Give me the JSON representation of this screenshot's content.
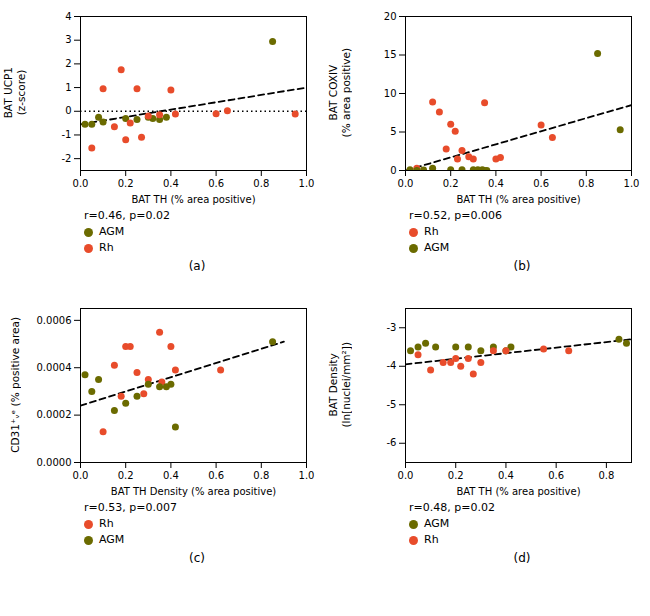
{
  "chart_data": [
    {
      "type": "scatter",
      "caption": "(a)",
      "annotations": [
        "r=0.46, p=0.02"
      ],
      "xlabel": "BAT TH (% area positive)",
      "ylabel": "BAT UCP1\n(z-score)",
      "xlim": [
        0,
        1.0
      ],
      "ylim": [
        -2.5,
        4.0
      ],
      "xticks": [
        {
          "value": 0,
          "label": "0.0"
        },
        0.2,
        0.4,
        0.6,
        0.8,
        {
          "value": 1,
          "label": "1.0"
        }
      ],
      "yticks": [
        -2,
        -1,
        0,
        1,
        2,
        3,
        4
      ],
      "grid": false,
      "legend": "bottom",
      "hlines": [
        {
          "value": 0,
          "color": "#000000",
          "line_style": "dotted"
        }
      ],
      "series": [
        {
          "name": "AGM",
          "color": "#6b6b00",
          "marker": "circle",
          "x": [
            0.02,
            0.05,
            0.08,
            0.1,
            0.2,
            0.25,
            0.3,
            0.32,
            0.35,
            0.38,
            0.85
          ],
          "values": [
            -0.55,
            -0.55,
            -0.25,
            -0.45,
            -0.3,
            -0.35,
            -0.25,
            -0.3,
            -0.35,
            -0.25,
            2.95
          ]
        },
        {
          "name": "Rh",
          "color": "#e84c2b",
          "marker": "circle",
          "x": [
            0.05,
            0.1,
            0.15,
            0.18,
            0.2,
            0.22,
            0.25,
            0.27,
            0.3,
            0.35,
            0.4,
            0.42,
            0.6,
            0.65,
            0.95
          ],
          "values": [
            -1.55,
            0.95,
            -0.65,
            1.75,
            -1.2,
            -0.5,
            0.95,
            -1.1,
            -0.2,
            -0.15,
            0.9,
            -0.12,
            -0.1,
            0.02,
            -0.12
          ]
        },
        {
          "type": "line",
          "line_style": "dashed",
          "color": "#000000",
          "x": [
            0.0,
            1.0
          ],
          "values": [
            -0.55,
            1.0
          ]
        }
      ]
    },
    {
      "type": "scatter",
      "caption": "(b)",
      "annotations": [
        "r=0.52, p=0.006"
      ],
      "xlabel": "BAT TH (% area positive)",
      "ylabel": "BAT COXIV\n(% area positive)",
      "xlim": [
        0,
        1.0
      ],
      "ylim": [
        0,
        20
      ],
      "xticks": [
        {
          "value": 0,
          "label": "0.0"
        },
        0.2,
        0.4,
        0.6,
        0.8,
        {
          "value": 1,
          "label": "1.0"
        }
      ],
      "yticks": [
        0,
        5,
        10,
        15,
        20
      ],
      "grid": false,
      "legend": "bottom",
      "series": [
        {
          "name": "Rh",
          "color": "#e84c2b",
          "marker": "circle",
          "x": [
            0.05,
            0.12,
            0.15,
            0.18,
            0.2,
            0.22,
            0.23,
            0.25,
            0.28,
            0.3,
            0.35,
            0.4,
            0.42,
            0.6,
            0.65
          ],
          "values": [
            0.3,
            8.9,
            7.6,
            2.8,
            6.0,
            5.1,
            1.5,
            2.6,
            1.8,
            1.5,
            8.8,
            1.5,
            1.7,
            5.9,
            4.3
          ]
        },
        {
          "name": "AGM",
          "color": "#6b6b00",
          "marker": "circle",
          "x": [
            0.02,
            0.05,
            0.08,
            0.12,
            0.2,
            0.25,
            0.3,
            0.32,
            0.34,
            0.35,
            0.36,
            0.85,
            0.95
          ],
          "values": [
            0.1,
            0.0,
            0.05,
            0.3,
            0.1,
            0.1,
            0.1,
            0.1,
            0.1,
            0.0,
            0.0,
            15.2,
            5.3
          ]
        },
        {
          "type": "line",
          "line_style": "dashed",
          "color": "#000000",
          "x": [
            0.0,
            1.0
          ],
          "values": [
            0.0,
            8.5
          ]
        }
      ]
    },
    {
      "type": "scatter",
      "caption": "(c)",
      "annotations": [
        "r=0.53, p=0.007"
      ],
      "xlabel": "BAT TH Density (% area positive)",
      "ylabel": "CD31⁺ᵥᵉ (% positive area)",
      "xlim": [
        0,
        1.0
      ],
      "ylim": [
        0,
        0.00065
      ],
      "xticks": [
        {
          "value": 0,
          "label": "0.0"
        },
        0.2,
        0.4,
        0.6,
        0.8,
        {
          "value": 1,
          "label": "1.0"
        }
      ],
      "yticks": [
        {
          "value": 0,
          "label": "0.0000"
        },
        {
          "value": 0.0002,
          "label": "0.0002"
        },
        {
          "value": 0.0004,
          "label": "0.0004"
        },
        {
          "value": 0.0006,
          "label": "0.0006"
        }
      ],
      "grid": false,
      "legend": "bottom",
      "series": [
        {
          "name": "Rh",
          "color": "#e84c2b",
          "marker": "circle",
          "x": [
            0.1,
            0.15,
            0.18,
            0.2,
            0.22,
            0.25,
            0.28,
            0.3,
            0.35,
            0.36,
            0.4,
            0.42,
            0.62
          ],
          "values": [
            0.00013,
            0.00041,
            0.00028,
            0.00049,
            0.00049,
            0.00038,
            0.00029,
            0.00035,
            0.00055,
            0.00034,
            0.00049,
            0.00039,
            0.00039
          ]
        },
        {
          "name": "AGM",
          "color": "#6b6b00",
          "marker": "circle",
          "x": [
            0.02,
            0.05,
            0.08,
            0.15,
            0.2,
            0.25,
            0.3,
            0.35,
            0.38,
            0.4,
            0.42,
            0.85
          ],
          "values": [
            0.00037,
            0.0003,
            0.00035,
            0.00022,
            0.00025,
            0.00028,
            0.00033,
            0.00032,
            0.00032,
            0.00033,
            0.00015,
            0.00051
          ]
        },
        {
          "type": "line",
          "line_style": "dashed",
          "color": "#000000",
          "x": [
            0.0,
            0.9
          ],
          "values": [
            0.00024,
            0.00051
          ]
        }
      ]
    },
    {
      "type": "scatter",
      "caption": "(d)",
      "annotations": [
        "r=0.48, p=0.02"
      ],
      "xlabel": "BAT TH (% area positive)",
      "ylabel": "BAT Density\n(ln[nuclei/mm²])",
      "xlim": [
        0,
        0.9
      ],
      "ylim": [
        -6.5,
        -2.5
      ],
      "xticks": [
        {
          "value": 0,
          "label": "0.0"
        },
        0.2,
        0.4,
        0.6,
        0.8
      ],
      "yticks": [
        -6,
        -5,
        -4,
        -3
      ],
      "grid": false,
      "legend": "bottom",
      "series": [
        {
          "name": "AGM",
          "color": "#6b6b00",
          "marker": "circle",
          "x": [
            0.02,
            0.05,
            0.08,
            0.12,
            0.2,
            0.25,
            0.3,
            0.35,
            0.4,
            0.42,
            0.85,
            0.88
          ],
          "values": [
            -3.6,
            -3.5,
            -3.4,
            -3.5,
            -3.5,
            -3.5,
            -3.6,
            -3.5,
            -3.6,
            -3.5,
            -3.3,
            -3.4
          ]
        },
        {
          "name": "Rh",
          "color": "#e84c2b",
          "marker": "circle",
          "x": [
            0.05,
            0.1,
            0.15,
            0.18,
            0.2,
            0.22,
            0.25,
            0.27,
            0.3,
            0.35,
            0.4,
            0.55,
            0.65
          ],
          "values": [
            -3.7,
            -4.1,
            -3.9,
            -3.9,
            -3.8,
            -4.0,
            -3.8,
            -4.2,
            -3.9,
            -3.6,
            -3.6,
            -3.55,
            -3.6
          ]
        },
        {
          "type": "line",
          "line_style": "dashed",
          "color": "#000000",
          "x": [
            0.0,
            0.9
          ],
          "values": [
            -3.95,
            -3.3
          ]
        }
      ]
    }
  ]
}
